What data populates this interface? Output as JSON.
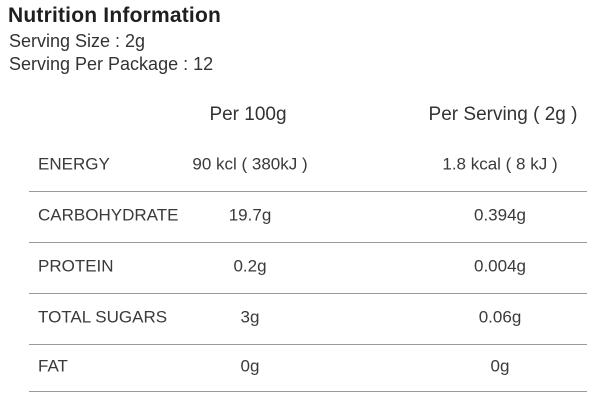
{
  "header": {
    "title": "Nutrition Information",
    "serving_size": "Serving Size : 2g",
    "serving_per_package": "Serving Per Package : 12"
  },
  "table": {
    "columns": [
      "",
      "Per 100g",
      "Per Serving ( 2g )"
    ],
    "rows": [
      {
        "label": "ENERGY",
        "per_100g": "90 kcl ( 380kJ )",
        "per_serving": "1.8 kcal ( 8 kJ )"
      },
      {
        "label": "CARBOHYDRATE",
        "per_100g": "19.7g",
        "per_serving": "0.394g"
      },
      {
        "label": "PROTEIN",
        "per_100g": "0.2g",
        "per_serving": "0.004g"
      },
      {
        "label": "TOTAL SUGARS",
        "per_100g": "3g",
        "per_serving": "0.06g"
      },
      {
        "label": "FAT",
        "per_100g": "0g",
        "per_serving": "0g"
      }
    ]
  },
  "colors": {
    "text": "#3a3a3a",
    "title": "#1f1f1f",
    "divider": "#9a9a9a",
    "background": "#ffffff"
  }
}
